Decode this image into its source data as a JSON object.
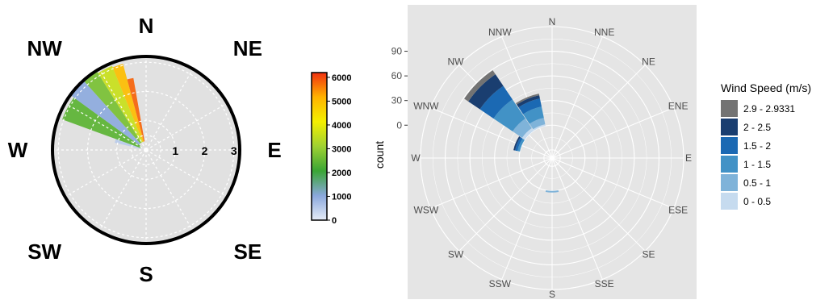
{
  "chart_data": [
    {
      "type": "polar-heatmap",
      "compass_labels": [
        "N",
        "NE",
        "E",
        "SE",
        "S",
        "SW",
        "W",
        "NW"
      ],
      "ring_labels": [
        "1",
        "2",
        "3"
      ],
      "rmax": 3.2,
      "colorbar": {
        "ticks": [
          "0",
          "1000",
          "2000",
          "3000",
          "4000",
          "5000",
          "6000"
        ],
        "range": [
          0,
          6200
        ],
        "colors": [
          "#e6ecf7",
          "#8aa8dc",
          "#3aa534",
          "#9fd132",
          "#f4f000",
          "#ffb300",
          "#f03010"
        ]
      },
      "field": [
        {
          "dir_from": 283,
          "dir_to": 290,
          "r_from": 0.2,
          "r_to": 1.1,
          "value": 500
        },
        {
          "dir_from": 290,
          "dir_to": 306,
          "r_from": 0.2,
          "r_to": 3.05,
          "value": 2400
        },
        {
          "dir_from": 306,
          "dir_to": 318,
          "r_from": 0.3,
          "r_to": 3.15,
          "value": 1000
        },
        {
          "dir_from": 318,
          "dir_to": 328,
          "r_from": 0.3,
          "r_to": 3.15,
          "value": 2700
        },
        {
          "dir_from": 328,
          "dir_to": 338,
          "r_from": 0.3,
          "r_to": 3.1,
          "value": 3600
        },
        {
          "dir_from": 338,
          "dir_to": 345,
          "r_from": 0.3,
          "r_to": 3.05,
          "value": 5000
        },
        {
          "dir_from": 345,
          "dir_to": 350,
          "r_from": 0.3,
          "r_to": 2.5,
          "value": 5800
        }
      ]
    },
    {
      "type": "bar",
      "subtype": "wind-rose",
      "categories": [
        "N",
        "NNE",
        "NE",
        "ENE",
        "E",
        "ESE",
        "SE",
        "SSE",
        "S",
        "SSW",
        "SW",
        "WSW",
        "W",
        "WNW",
        "NW",
        "NNW"
      ],
      "ylabel": "count",
      "yticks": [
        "0",
        "30",
        "60",
        "90"
      ],
      "ylim": [
        -40,
        120
      ],
      "legend_title": "Wind Speed (m/s)",
      "series": [
        {
          "name": "0 - 0.5",
          "color": "#c6dbef",
          "values": [
            0,
            0,
            0,
            0,
            0,
            0,
            0,
            0,
            0,
            0,
            0,
            0,
            0,
            0,
            4,
            2
          ]
        },
        {
          "name": "0.5 - 1",
          "color": "#7fb3d9",
          "values": [
            0,
            0,
            0,
            0,
            0,
            0,
            0,
            0,
            2,
            0,
            0,
            0,
            0,
            0,
            14,
            8
          ]
        },
        {
          "name": "1 - 1.5",
          "color": "#4292c6",
          "values": [
            0,
            0,
            0,
            0,
            0,
            0,
            0,
            0,
            0,
            0,
            0,
            0,
            0,
            3,
            28,
            14
          ]
        },
        {
          "name": "1.5 - 2",
          "color": "#1b69b3",
          "values": [
            0,
            0,
            0,
            0,
            0,
            0,
            0,
            0,
            0,
            0,
            0,
            0,
            0,
            3,
            20,
            10
          ]
        },
        {
          "name": "2 - 2.5",
          "color": "#1a3e70",
          "values": [
            0,
            0,
            0,
            0,
            0,
            0,
            0,
            0,
            0,
            0,
            0,
            0,
            0,
            2,
            17,
            4
          ]
        },
        {
          "name": "2.9 - 2.9331",
          "color": "#737373",
          "values": [
            0,
            0,
            0,
            0,
            0,
            0,
            0,
            0,
            0,
            0,
            0,
            0,
            0,
            0,
            6,
            2
          ]
        }
      ]
    }
  ]
}
